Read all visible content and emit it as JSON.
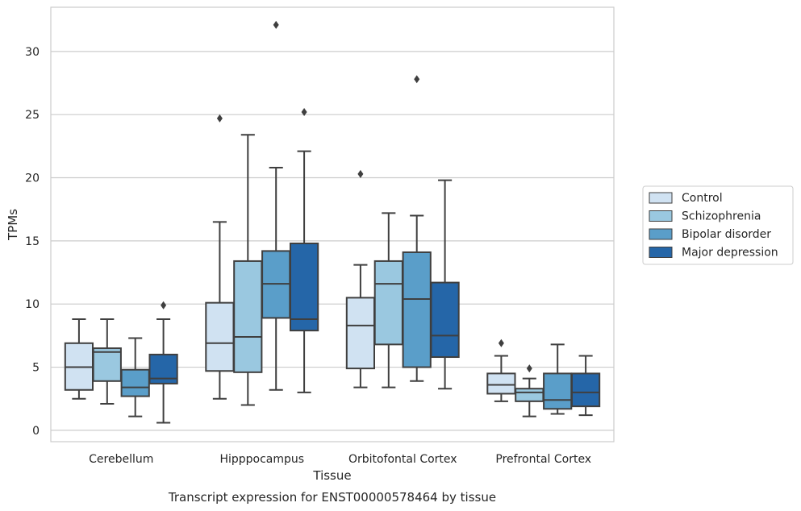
{
  "chart_data": {
    "type": "box",
    "caption": "Transcript expression for ENST00000578464 by tissue",
    "xlabel": "Tissue",
    "ylabel": "TPMs",
    "ylim": [
      -0.9,
      33.5
    ],
    "yticks": [
      0,
      5,
      10,
      15,
      20,
      25,
      30
    ],
    "grid": "horizontal",
    "legend_position": "right",
    "categories": [
      "Cerebellum",
      "Hipppocampus",
      "Orbitofontal Cortex",
      "Prefrontal Cortex"
    ],
    "series": [
      {
        "name": "Control",
        "color": "#d0e2f2",
        "boxes": [
          {
            "min": 2.5,
            "q1": 3.2,
            "median": 5.0,
            "q3": 6.9,
            "max": 8.8,
            "outliers": []
          },
          {
            "min": 2.5,
            "q1": 4.7,
            "median": 6.9,
            "q3": 10.1,
            "max": 16.5,
            "outliers": [
              24.7
            ]
          },
          {
            "min": 3.4,
            "q1": 4.9,
            "median": 8.3,
            "q3": 10.5,
            "max": 13.1,
            "outliers": [
              20.3
            ]
          },
          {
            "min": 2.3,
            "q1": 2.9,
            "median": 3.6,
            "q3": 4.5,
            "max": 5.9,
            "outliers": [
              6.9
            ]
          }
        ]
      },
      {
        "name": "Schizophrenia",
        "color": "#9ac8e0",
        "boxes": [
          {
            "min": 2.1,
            "q1": 3.9,
            "median": 6.2,
            "q3": 6.5,
            "max": 8.8,
            "outliers": []
          },
          {
            "min": 2.0,
            "q1": 4.6,
            "median": 7.4,
            "q3": 13.4,
            "max": 23.4,
            "outliers": []
          },
          {
            "min": 3.4,
            "q1": 6.8,
            "median": 11.6,
            "q3": 13.4,
            "max": 17.2,
            "outliers": []
          },
          {
            "min": 1.1,
            "q1": 2.3,
            "median": 3.0,
            "q3": 3.3,
            "max": 4.1,
            "outliers": [
              4.9
            ]
          }
        ]
      },
      {
        "name": "Bipolar disorder",
        "color": "#5a9ec9",
        "boxes": [
          {
            "min": 1.1,
            "q1": 2.7,
            "median": 3.4,
            "q3": 4.8,
            "max": 7.3,
            "outliers": []
          },
          {
            "min": 3.2,
            "q1": 8.9,
            "median": 11.6,
            "q3": 14.2,
            "max": 20.8,
            "outliers": [
              32.1
            ]
          },
          {
            "min": 3.9,
            "q1": 5.0,
            "median": 10.4,
            "q3": 14.1,
            "max": 17.0,
            "outliers": [
              27.8
            ]
          },
          {
            "min": 1.3,
            "q1": 1.7,
            "median": 2.4,
            "q3": 4.5,
            "max": 6.8,
            "outliers": []
          }
        ]
      },
      {
        "name": "Major depression",
        "color": "#2566a8",
        "boxes": [
          {
            "min": 0.6,
            "q1": 3.7,
            "median": 4.1,
            "q3": 6.0,
            "max": 8.8,
            "outliers": [
              9.9
            ]
          },
          {
            "min": 3.0,
            "q1": 7.9,
            "median": 8.8,
            "q3": 14.8,
            "max": 22.1,
            "outliers": [
              25.2
            ]
          },
          {
            "min": 3.3,
            "q1": 5.8,
            "median": 7.5,
            "q3": 11.7,
            "max": 19.8,
            "outliers": []
          },
          {
            "min": 1.2,
            "q1": 1.9,
            "median": 3.0,
            "q3": 4.5,
            "max": 5.9,
            "outliers": []
          }
        ]
      }
    ]
  }
}
